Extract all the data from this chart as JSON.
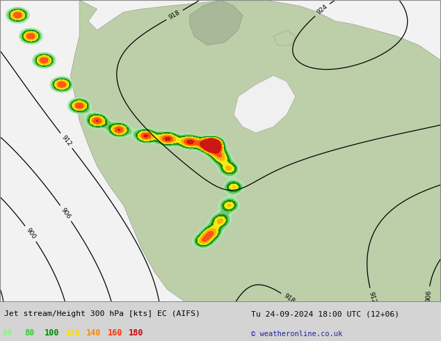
{
  "title_left": "Jet stream/Height 300 hPa [kts] EC (AIFS)",
  "title_right": "Tu 24-09-2024 18:00 UTC (12+06)",
  "copyright": "© weatheronline.co.uk",
  "legend_values": [
    60,
    80,
    100,
    120,
    140,
    160,
    180
  ],
  "legend_colors": [
    "#90ee90",
    "#32cd32",
    "#008800",
    "#ffdd00",
    "#ff8800",
    "#ff3300",
    "#cc0000"
  ],
  "bottom_bg": "#d4d4d4",
  "map_land_color": "#b8c8a0",
  "map_ocean_color": "#ffffff",
  "figsize": [
    6.34,
    4.9
  ],
  "dpi": 100,
  "jet_colors": [
    "#b0e8b0",
    "#64c864",
    "#008800",
    "#ffee00",
    "#ffaa00",
    "#ff4400",
    "#cc0000"
  ],
  "jet_levels": [
    60,
    80,
    100,
    120,
    140,
    160,
    180,
    220
  ]
}
